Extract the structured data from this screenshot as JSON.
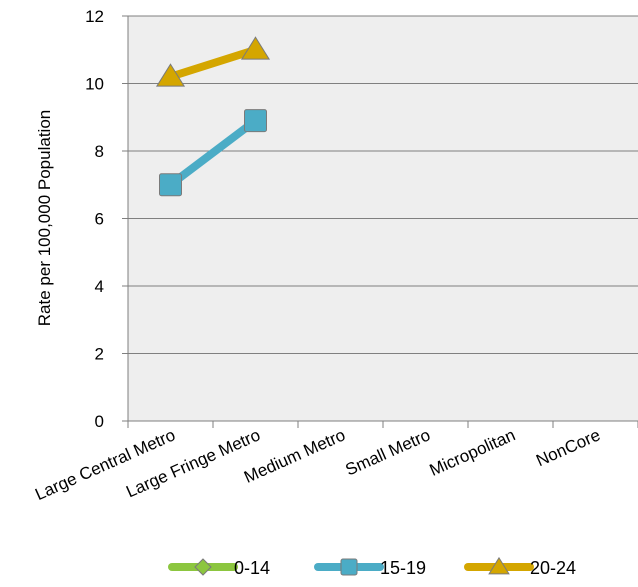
{
  "chart_data": {
    "type": "line",
    "title": "",
    "ylabel": "Rate per 100,000 Population",
    "xlabel": "",
    "categories": [
      "Large Central Metro",
      "Large Fringe Metro",
      "Medium Metro",
      "Small Metro",
      "Micropolitan",
      "NonCore"
    ],
    "ylim": [
      0,
      12
    ],
    "yticks": [
      "0",
      "2",
      "4",
      "6",
      "8",
      "10",
      "12"
    ],
    "grid": true,
    "legend_position": "bottom",
    "series": [
      {
        "name": "0-14",
        "color": "#8CC63F",
        "marker": "diamond",
        "values": [
          null,
          null,
          null,
          null,
          null,
          null
        ]
      },
      {
        "name": "15-19",
        "color": "#4BACC6",
        "marker": "square",
        "values": [
          7.0,
          8.9,
          null,
          null,
          null,
          null
        ]
      },
      {
        "name": "20-24",
        "color": "#D4A600",
        "marker": "triangle",
        "values": [
          10.2,
          11.0,
          null,
          null,
          null,
          null
        ]
      }
    ]
  }
}
